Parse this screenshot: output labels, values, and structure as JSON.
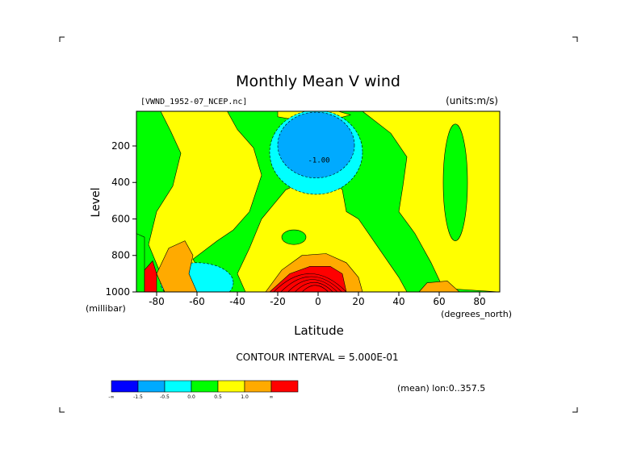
{
  "page": {
    "dataset": "[VWND_1952-07_NCEP.nc]",
    "units": "(units:m/s)",
    "contour_interval_text": "CONTOUR INTERVAL = 5.000E-01",
    "mean_note": "(mean) lon:0..357.5"
  },
  "chart_data": {
    "type": "heatmap",
    "title": "Monthly Mean V wind",
    "xlabel": "Latitude",
    "xunits": "(degrees_north)",
    "ylabel": "Level",
    "yunits": "(millibar)",
    "xlim": [
      -90,
      90
    ],
    "ylim": [
      1000,
      10
    ],
    "y_inverted": true,
    "xticks": [
      -80,
      -60,
      -40,
      -20,
      0,
      20,
      40,
      60,
      80
    ],
    "yticks": [
      200,
      400,
      600,
      800,
      1000
    ],
    "contour_interval": 0.5,
    "contour_label": "-1.00",
    "colorbar": {
      "colors": [
        "#0000ff",
        "#00aaff",
        "#00ffff",
        "#00ff00",
        "#ffff00",
        "#ffaa00",
        "#ff0000"
      ],
      "tick_labels": [
        "-∞",
        "-1.5",
        "-0.5",
        "0.0",
        "0.5",
        "1.0",
        "∞"
      ]
    },
    "regions": [
      {
        "level": 3,
        "label": "background (0.0 to 0.5)",
        "color": "#00ff00"
      },
      {
        "level": 4,
        "label": "broad positive band",
        "color": "#ffff00"
      },
      {
        "level": 2,
        "label": "negative core near 200 mb, ~0N",
        "color": "#00ffff"
      },
      {
        "level": 1,
        "label": "strong negative core",
        "color": "#00aaff"
      },
      {
        "level": 5,
        "label": "positive near surface, ~0N",
        "color": "#ffaa00"
      },
      {
        "level": 6,
        "label": "strong positive near surface",
        "color": "#ff0000"
      }
    ]
  }
}
